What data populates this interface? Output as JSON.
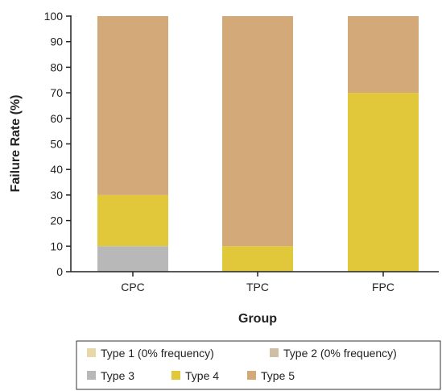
{
  "chart_data": {
    "type": "bar",
    "stacked": true,
    "categories": [
      "CPC",
      "TPC",
      "FPC"
    ],
    "series": [
      {
        "name": "Type 1 (0% frequency)",
        "color": "#e8d7a8",
        "values": [
          0,
          0,
          0
        ]
      },
      {
        "name": "Type 2 (0% frequency)",
        "color": "#cfc0a5",
        "values": [
          0,
          0,
          0
        ]
      },
      {
        "name": "Type 3",
        "color": "#b8b8b8",
        "values": [
          10,
          0,
          0
        ]
      },
      {
        "name": "Type 4",
        "color": "#e0c83a",
        "values": [
          20,
          10,
          70
        ]
      },
      {
        "name": "Type 5",
        "color": "#d4a97a",
        "values": [
          70,
          90,
          30
        ]
      }
    ],
    "xlabel": "Group",
    "ylabel": "Failure Rate (%)",
    "ylim": [
      0,
      100
    ],
    "yticks": [
      0,
      10,
      20,
      30,
      40,
      50,
      60,
      70,
      80,
      90,
      100
    ],
    "grid": false,
    "legend": "bottom"
  }
}
